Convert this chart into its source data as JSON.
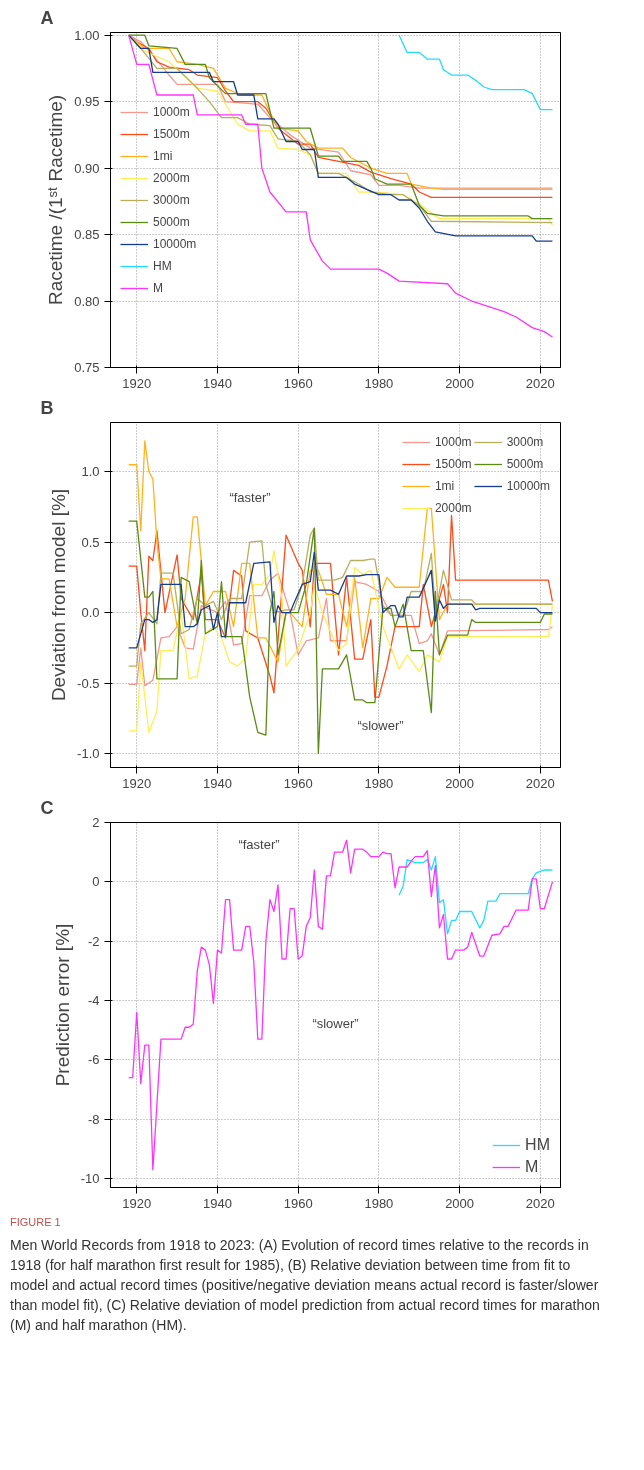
{
  "chart_data": [
    {
      "type": "line",
      "title": "A",
      "ylabel": "Racetime /(1ˢᵗ Racetime)",
      "xlim": [
        1913.5,
        2025
      ],
      "ylim": [
        0.75,
        1.002
      ],
      "xticks": [
        1920,
        1940,
        1960,
        1980,
        2000,
        2020
      ],
      "yticks": [
        {
          "value": 0.75,
          "label": "0.75"
        },
        {
          "value": 0.8,
          "label": "0.80"
        },
        {
          "value": 0.85,
          "label": "0.85"
        },
        {
          "value": 0.9,
          "label": "0.90"
        },
        {
          "value": 0.95,
          "label": "0.95"
        },
        {
          "value": 1.0,
          "label": "1.00"
        }
      ],
      "grid": true,
      "legend": "left",
      "series": [
        {
          "name": "1000m",
          "color": "#f4978e",
          "x": [
            1918,
            1921,
            1924,
            1928,
            1930,
            1940,
            1942,
            1950,
            1953,
            1958,
            1963,
            1970,
            1973,
            1978,
            1980,
            1985,
            1990,
            2023
          ],
          "values": [
            1.0,
            0.995,
            0.985,
            0.97,
            0.963,
            0.963,
            0.95,
            0.948,
            0.938,
            0.925,
            0.915,
            0.912,
            0.898,
            0.895,
            0.887,
            0.887,
            0.885,
            0.885
          ]
        },
        {
          "name": "1500m",
          "color": "#ff4a1a",
          "x": [
            1918,
            1920,
            1923,
            1925,
            1928,
            1933,
            1935,
            1940,
            1942,
            1944,
            1950,
            1952,
            1955,
            1960,
            1963,
            1965,
            1970,
            1975,
            1978,
            1983,
            1988,
            1990,
            1993,
            2023
          ],
          "values": [
            1.0,
            0.995,
            0.99,
            0.98,
            0.976,
            0.974,
            0.97,
            0.968,
            0.958,
            0.95,
            0.95,
            0.945,
            0.93,
            0.918,
            0.918,
            0.908,
            0.905,
            0.902,
            0.897,
            0.892,
            0.888,
            0.882,
            0.878,
            0.878
          ]
        },
        {
          "name": "1mi",
          "color": "#ffb21e",
          "x": [
            1918,
            1922,
            1928,
            1930,
            1935,
            1939,
            1942,
            1946,
            1951,
            1953,
            1955,
            1960,
            1962,
            1965,
            1971,
            1973,
            1978,
            1982,
            1987,
            1988,
            1993,
            1996,
            2023
          ],
          "values": [
            1.0,
            0.99,
            0.99,
            0.98,
            0.978,
            0.975,
            0.96,
            0.955,
            0.955,
            0.942,
            0.93,
            0.928,
            0.92,
            0.915,
            0.915,
            0.908,
            0.9,
            0.896,
            0.896,
            0.888,
            0.885,
            0.884,
            0.884
          ]
        },
        {
          "name": "2000m",
          "color": "#ffee55",
          "x": [
            1918,
            1922,
            1928,
            1935,
            1940,
            1945,
            1948,
            1953,
            1955,
            1960,
            1963,
            1965,
            1972,
            1975,
            1980,
            1986,
            1990,
            1995,
            2022,
            2023
          ],
          "values": [
            1.0,
            0.988,
            0.98,
            0.96,
            0.958,
            0.933,
            0.928,
            0.928,
            0.915,
            0.914,
            0.91,
            0.896,
            0.896,
            0.882,
            0.882,
            0.88,
            0.873,
            0.862,
            0.862,
            0.857
          ]
        },
        {
          "name": "3000m",
          "color": "#b8ae5e",
          "x": [
            1918,
            1921,
            1925,
            1930,
            1935,
            1938,
            1941,
            1945,
            1948,
            1953,
            1955,
            1960,
            1963,
            1965,
            1970,
            1975,
            1978,
            1983,
            1986,
            1990,
            1993,
            2023
          ],
          "values": [
            1.0,
            0.99,
            0.975,
            0.975,
            0.96,
            0.95,
            0.938,
            0.938,
            0.933,
            0.932,
            0.922,
            0.92,
            0.91,
            0.896,
            0.896,
            0.888,
            0.882,
            0.88,
            0.88,
            0.872,
            0.86,
            0.859
          ]
        },
        {
          "name": "5000m",
          "color": "#5a8c14",
          "x": [
            1918,
            1922,
            1923,
            1930,
            1932,
            1937,
            1938,
            1942,
            1952,
            1954,
            1963,
            1965,
            1970,
            1971,
            1977,
            1978,
            1979,
            1982,
            1988,
            1990,
            1992,
            1996,
            2017,
            2018,
            2023
          ],
          "values": [
            1.0,
            1.0,
            0.992,
            0.99,
            0.978,
            0.978,
            0.968,
            0.956,
            0.956,
            0.93,
            0.93,
            0.909,
            0.909,
            0.905,
            0.905,
            0.9,
            0.892,
            0.888,
            0.888,
            0.872,
            0.866,
            0.864,
            0.864,
            0.862,
            0.862
          ]
        },
        {
          "name": "10000m",
          "color": "#163c8c",
          "x": [
            1918,
            1921,
            1923,
            1924,
            1938,
            1939,
            1944,
            1945,
            1949,
            1950,
            1954,
            1955,
            1957,
            1960,
            1961,
            1964,
            1965,
            1972,
            1974,
            1977,
            1980,
            1983,
            1985,
            1988,
            1990,
            1992,
            1994,
            1999,
            2018,
            2019,
            2023
          ],
          "values": [
            1.0,
            0.99,
            0.99,
            0.972,
            0.972,
            0.965,
            0.965,
            0.955,
            0.955,
            0.937,
            0.937,
            0.933,
            0.92,
            0.92,
            0.914,
            0.914,
            0.893,
            0.893,
            0.888,
            0.884,
            0.88,
            0.88,
            0.876,
            0.876,
            0.87,
            0.86,
            0.852,
            0.849,
            0.849,
            0.845,
            0.845
          ]
        },
        {
          "name": "HM",
          "color": "#22ddff",
          "x": [
            1985,
            1987,
            1990,
            1992,
            1995,
            1996,
            1998,
            2002,
            2004,
            2006,
            2008,
            2016,
            2018,
            2020,
            2023
          ],
          "values": [
            1.0,
            0.987,
            0.987,
            0.982,
            0.982,
            0.974,
            0.97,
            0.97,
            0.966,
            0.961,
            0.959,
            0.959,
            0.956,
            0.944,
            0.944
          ]
        },
        {
          "name": "M",
          "color": "#ff33ff",
          "x": [
            1918,
            1920,
            1923,
            1925,
            1934,
            1935,
            1946,
            1947,
            1950,
            1951,
            1953,
            1957,
            1962,
            1963,
            1966,
            1968,
            1980,
            1982,
            1985,
            1997,
            1999,
            2003,
            2008,
            2011,
            2014,
            2018,
            2021,
            2023
          ],
          "values": [
            1.0,
            0.978,
            0.978,
            0.955,
            0.955,
            0.94,
            0.94,
            0.933,
            0.933,
            0.9,
            0.882,
            0.867,
            0.867,
            0.846,
            0.83,
            0.824,
            0.824,
            0.821,
            0.815,
            0.813,
            0.806,
            0.8,
            0.795,
            0.792,
            0.788,
            0.78,
            0.777,
            0.773
          ]
        }
      ]
    },
    {
      "type": "line",
      "title": "B",
      "ylabel": "Deviation from model [%]",
      "xlim": [
        1913.5,
        2025
      ],
      "ylim": [
        -1.1,
        1.35
      ],
      "xticks": [
        1920,
        1940,
        1960,
        1980,
        2000,
        2020
      ],
      "yticks": [
        {
          "value": -1.0,
          "label": "-1.0"
        },
        {
          "value": -0.5,
          "label": "-0.5"
        },
        {
          "value": 0.0,
          "label": "0.0"
        },
        {
          "value": 0.5,
          "label": "0.5"
        },
        {
          "value": 1.0,
          "label": "1.0"
        }
      ],
      "grid": true,
      "legend": "top right",
      "annotations": [
        "“faster”",
        "“slower”"
      ],
      "series": [
        {
          "name": "1000m",
          "color": "#f4978e",
          "x": [
            1918,
            1920,
            1921,
            1922,
            1924,
            1926,
            1928,
            1930,
            1932,
            1934,
            1936,
            1940,
            1942,
            1944,
            1946,
            1948,
            1951,
            1953,
            1955,
            1958,
            1960,
            1962,
            1965,
            1967,
            1968,
            1972,
            1974,
            1977,
            1980,
            1981,
            1983,
            1988,
            1990,
            1992,
            1993,
            1995,
            1997,
            2022,
            2023
          ],
          "values": [
            -0.51,
            -0.51,
            -0.25,
            -0.52,
            -0.48,
            -0.18,
            -0.17,
            -0.1,
            -0.25,
            -0.26,
            0.05,
            0.0,
            0.08,
            -0.23,
            -0.22,
            0.12,
            0.12,
            0.23,
            0.28,
            0.0,
            -0.3,
            -0.2,
            -0.18,
            0.1,
            -0.2,
            -0.2,
            0.22,
            0.2,
            0.15,
            0.1,
            -0.02,
            -0.02,
            -0.22,
            -0.2,
            -0.15,
            -0.3,
            -0.13,
            -0.12,
            -0.1
          ]
        },
        {
          "name": "1500m",
          "color": "#ff4a1a",
          "x": [
            1918,
            1920,
            1921,
            1922,
            1923,
            1924,
            1925,
            1927,
            1930,
            1931,
            1934,
            1936,
            1937,
            1940,
            1942,
            1944,
            1946,
            1947,
            1950,
            1953,
            1954,
            1957,
            1960,
            1961,
            1963,
            1964,
            1968,
            1970,
            1972,
            1974,
            1976,
            1978,
            1979,
            1980,
            1982,
            1984,
            1990,
            1991,
            1993,
            1995,
            1996,
            1997,
            1998,
            1999,
            2022,
            2023
          ],
          "values": [
            0.33,
            0.33,
            0.0,
            -0.27,
            0.4,
            0.37,
            0.58,
            0.0,
            0.41,
            0.1,
            -0.05,
            0.28,
            -0.05,
            -0.05,
            -0.18,
            0.3,
            0.26,
            -0.13,
            -0.18,
            -0.45,
            -0.57,
            0.55,
            0.35,
            0.3,
            -0.1,
            0.35,
            0.35,
            -0.3,
            0.25,
            -0.33,
            -0.33,
            -0.05,
            -0.6,
            -0.6,
            -0.38,
            -0.1,
            -0.1,
            0.2,
            -0.1,
            0.1,
            0.2,
            0.0,
            0.69,
            0.23,
            0.23,
            0.08
          ]
        },
        {
          "name": "1mi",
          "color": "#ffb21e",
          "x": [
            1918,
            1920,
            1921,
            1922,
            1923,
            1924,
            1925,
            1926,
            1928,
            1930,
            1932,
            1934,
            1935,
            1937,
            1939,
            1942,
            1944,
            1946,
            1948,
            1950,
            1952,
            1955,
            1957,
            1958,
            1961,
            1963,
            1965,
            1967,
            1970,
            1972,
            1974,
            1976,
            1978,
            1980,
            1982,
            1984,
            1990,
            1992,
            1993,
            1995,
            1997,
            2023
          ],
          "values": [
            1.05,
            1.05,
            0.58,
            1.22,
            1.0,
            0.95,
            0.5,
            0.24,
            0.24,
            -0.1,
            0.1,
            0.68,
            0.68,
            0.05,
            0.15,
            0.15,
            -0.1,
            0.35,
            0.35,
            -0.18,
            -0.18,
            -0.35,
            0.0,
            0.0,
            -0.1,
            0.3,
            0.3,
            0.13,
            0.13,
            -0.1,
            0.25,
            -0.25,
            0.1,
            0.1,
            0.25,
            0.18,
            0.18,
            0.74,
            0.74,
            -0.05,
            0.06,
            0.06
          ]
        },
        {
          "name": "2000m",
          "color": "#ffee55",
          "x": [
            1918,
            1920,
            1921,
            1923,
            1925,
            1926,
            1929,
            1931,
            1933,
            1935,
            1937,
            1939,
            1941,
            1943,
            1945,
            1947,
            1949,
            1951,
            1953,
            1954,
            1956,
            1957,
            1960,
            1963,
            1964,
            1966,
            1970,
            1972,
            1974,
            1976,
            1978,
            1981,
            1983,
            1985,
            1987,
            1990,
            1992,
            1995,
            1997,
            2022,
            2023
          ],
          "values": [
            -0.84,
            -0.84,
            -0.35,
            -0.85,
            -0.7,
            -0.27,
            -0.27,
            0.0,
            -0.47,
            -0.45,
            -0.15,
            -0.1,
            -0.18,
            -0.35,
            -0.38,
            -0.32,
            0.2,
            0.2,
            0.27,
            0.44,
            0.1,
            -0.38,
            -0.26,
            0.0,
            0.2,
            0.0,
            -0.27,
            -0.22,
            0.32,
            0.27,
            0.3,
            -0.1,
            -0.25,
            -0.4,
            -0.3,
            -0.42,
            -0.3,
            -0.35,
            -0.17,
            -0.17,
            0.05
          ]
        },
        {
          "name": "3000m",
          "color": "#b8ae5e",
          "x": [
            1918,
            1920,
            1921,
            1923,
            1925,
            1926,
            1929,
            1931,
            1933,
            1935,
            1937,
            1939,
            1941,
            1943,
            1946,
            1948,
            1951,
            1952,
            1954,
            1957,
            1959,
            1961,
            1963,
            1964,
            1965,
            1969,
            1971,
            1973,
            1976,
            1978,
            1979,
            1981,
            1983,
            1986,
            1988,
            1991,
            1993,
            1994,
            1996,
            1998,
            2003,
            2004,
            2020,
            2023
          ],
          "values": [
            -0.38,
            -0.38,
            -0.08,
            0.0,
            -0.08,
            0.28,
            0.28,
            -0.15,
            -0.12,
            0.1,
            0.05,
            0.08,
            -0.05,
            0.1,
            0.1,
            0.5,
            0.51,
            0.2,
            0.0,
            0.02,
            0.02,
            0.2,
            0.55,
            0.6,
            0.23,
            0.23,
            0.25,
            0.37,
            0.37,
            0.38,
            0.38,
            0.05,
            -0.02,
            -0.02,
            0.15,
            0.15,
            0.42,
            0.0,
            0.3,
            0.09,
            0.09,
            0.06,
            0.06,
            0.06
          ]
        },
        {
          "name": "5000m",
          "color": "#5a8c14",
          "x": [
            1918,
            1920,
            1922,
            1923,
            1924,
            1925,
            1930,
            1931,
            1933,
            1935,
            1936,
            1937,
            1940,
            1941,
            1942,
            1946,
            1948,
            1950,
            1952,
            1953,
            1954,
            1955,
            1957,
            1960,
            1962,
            1964,
            1965,
            1966,
            1970,
            1972,
            1974,
            1976,
            1977,
            1979,
            1981,
            1983,
            1984,
            1986,
            1988,
            1991,
            1993,
            1994,
            1995,
            1997,
            2002,
            2003,
            2004,
            2020,
            2021,
            2023
          ],
          "values": [
            0.65,
            0.65,
            0.11,
            0.11,
            0.15,
            -0.47,
            -0.47,
            0.25,
            0.22,
            -0.08,
            0.37,
            -0.15,
            -0.1,
            0.22,
            -0.17,
            -0.17,
            -0.6,
            -0.85,
            -0.87,
            0.0,
            0.15,
            -0.3,
            0.0,
            0.0,
            0.2,
            0.6,
            -1.0,
            -0.4,
            -0.4,
            -0.3,
            -0.62,
            -0.62,
            -0.64,
            -0.64,
            0.03,
            0.03,
            -0.1,
            0.06,
            -0.27,
            -0.27,
            -0.71,
            0.15,
            -0.3,
            -0.16,
            -0.16,
            -0.05,
            -0.07,
            -0.07,
            -0.01,
            -0.01
          ]
        },
        {
          "name": "10000m",
          "color": "#163c8c",
          "x": [
            1918,
            1920,
            1922,
            1923,
            1924,
            1925,
            1926,
            1931,
            1932,
            1934,
            1935,
            1936,
            1938,
            1939,
            1940,
            1941,
            1942,
            1943,
            1947,
            1949,
            1953,
            1954,
            1955,
            1956,
            1958,
            1959,
            1961,
            1963,
            1964,
            1965,
            1968,
            1970,
            1972,
            1975,
            1977,
            1980,
            1981,
            1983,
            1984,
            1985,
            1986,
            1987,
            1990,
            1993,
            1994,
            1995,
            1996,
            1997,
            2003,
            2004,
            2005,
            2019,
            2020,
            2023
          ],
          "values": [
            -0.25,
            -0.25,
            -0.05,
            -0.05,
            -0.07,
            -0.05,
            0.2,
            0.2,
            -0.1,
            -0.1,
            -0.08,
            0.02,
            0.05,
            -0.12,
            0.0,
            -0.17,
            -0.17,
            0.07,
            0.07,
            0.35,
            0.36,
            -0.07,
            0.05,
            0.0,
            0.0,
            0.07,
            0.2,
            0.22,
            0.43,
            0.16,
            0.16,
            0.13,
            0.26,
            0.26,
            0.27,
            0.27,
            0.0,
            0.05,
            0.05,
            -0.03,
            -0.03,
            0.11,
            0.11,
            0.3,
            -0.06,
            0.09,
            0.03,
            0.06,
            0.06,
            0.02,
            0.03,
            0.03,
            0.0,
            0.0
          ]
        }
      ]
    },
    {
      "type": "line",
      "title": "C",
      "ylabel": "Prediction error [%]",
      "xlim": [
        1913.5,
        2025
      ],
      "ylim": [
        -10.3,
        2
      ],
      "xticks": [
        1920,
        1940,
        1960,
        1980,
        2000,
        2020
      ],
      "yticks": [
        -10,
        -8,
        -6,
        -4,
        -2,
        0,
        2
      ],
      "grid": true,
      "legend": "bottom right",
      "annotations": [
        "“faster”",
        "“slower”",
        "FIGURE 1",
        "Men World Records from 1918 to 2023: (A) Evolution of record times relative to the records in 1918 (for half marathon first result for 1985), (B) Relative deviation between time from fit to model and actual record times (positive/negative deviation means actual record is faster/slower than model fit), (C) Relative deviation of model prediction from actual record times for marathon (M) and half marathon (HM)."
      ],
      "series": [
        {
          "name": "HM",
          "color": "#22ddff",
          "x": [
            1985,
            1986,
            1987,
            1988,
            1989,
            1991,
            1992,
            1993,
            1994,
            1995,
            1996,
            1997,
            1998,
            1999,
            2000,
            2003,
            2005,
            2006,
            2007,
            2009,
            2010,
            2017,
            2018,
            2019,
            2021,
            2023
          ],
          "values": [
            -0.45,
            -0.15,
            0.75,
            0.7,
            0.65,
            0.65,
            0.75,
            0.4,
            0.85,
            -0.7,
            -0.6,
            -1.75,
            -1.3,
            -1.3,
            -1.0,
            -1.0,
            -1.55,
            -1.3,
            -0.65,
            -0.65,
            -0.4,
            -0.4,
            0.1,
            0.3,
            0.4,
            0.4
          ]
        },
        {
          "name": "M",
          "color": "#ff33ff",
          "x": [
            1918,
            1919,
            1920,
            1921,
            1922,
            1923,
            1924,
            1926,
            1931,
            1932,
            1933,
            1934,
            1935,
            1936,
            1937,
            1938,
            1939,
            1940,
            1941,
            1942,
            1943,
            1944,
            1946,
            1947,
            1948,
            1949,
            1950,
            1951,
            1952,
            1953,
            1954,
            1955,
            1956,
            1957,
            1958,
            1959,
            1960,
            1961,
            1962,
            1963,
            1964,
            1965,
            1966,
            1967,
            1968,
            1969,
            1971,
            1972,
            1973,
            1974,
            1976,
            1977,
            1978,
            1980,
            1981,
            1982,
            1983,
            1984,
            1985,
            1987,
            1988,
            1989,
            1991,
            1992,
            1993,
            1994,
            1995,
            1996,
            1997,
            1998,
            1999,
            2001,
            2002,
            2003,
            2005,
            2006,
            2008,
            2010,
            2011,
            2012,
            2014,
            2017,
            2018,
            2019,
            2020,
            2021,
            2023
          ],
          "values": [
            -6.6,
            -6.6,
            -4.4,
            -6.8,
            -5.5,
            -5.5,
            -9.7,
            -5.3,
            -5.3,
            -4.9,
            -4.9,
            -4.8,
            -3.0,
            -2.2,
            -2.3,
            -2.8,
            -4.1,
            -2.3,
            -2.4,
            -0.6,
            -0.6,
            -2.3,
            -2.3,
            -1.5,
            -1.5,
            -2.7,
            -5.3,
            -5.3,
            -2.0,
            -0.6,
            -1.0,
            -0.1,
            -2.6,
            -2.6,
            -0.9,
            -0.9,
            -2.6,
            -2.5,
            -1.5,
            -1.2,
            0.4,
            -1.5,
            -1.6,
            0.2,
            0.2,
            1.0,
            1.0,
            1.4,
            0.3,
            1.1,
            1.1,
            1.0,
            0.85,
            0.85,
            1.0,
            0.95,
            0.95,
            -0.2,
            0.5,
            0.5,
            0.7,
            0.85,
            0.85,
            1.05,
            -0.5,
            0.55,
            -1.55,
            -1.1,
            -2.6,
            -2.6,
            -2.3,
            -2.3,
            -2.2,
            -1.7,
            -2.5,
            -2.5,
            -1.8,
            -1.75,
            -1.5,
            -1.5,
            -0.95,
            -0.95,
            0.1,
            0.1,
            -0.9,
            -0.9,
            0.0
          ]
        }
      ]
    }
  ]
}
